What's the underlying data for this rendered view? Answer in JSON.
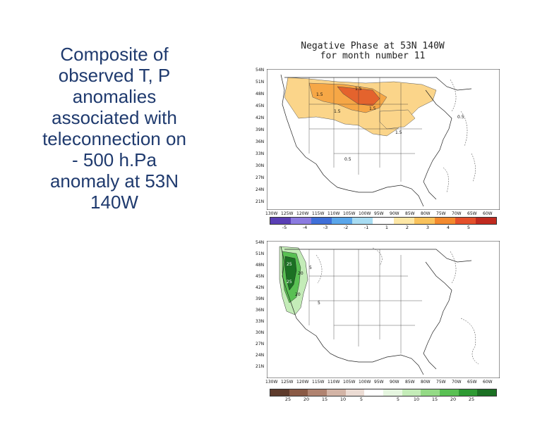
{
  "caption": {
    "lines": [
      "Composite of",
      "observed T, P",
      "anomalies",
      "associated with",
      "teleconnection on",
      "- 500 h.Pa",
      "anomaly at 53N",
      "140W"
    ]
  },
  "figure": {
    "title_line1": "Negative Phase at  53N 140W",
    "title_line2": "for month number 11",
    "lat_labels": [
      "54N",
      "51N",
      "48N",
      "45N",
      "42N",
      "39N",
      "36N",
      "33N",
      "30N",
      "27N",
      "24N",
      "21N"
    ],
    "lon_labels": [
      "130W",
      "125W",
      "120W",
      "115W",
      "110W",
      "105W",
      "100W",
      "95W",
      "90W",
      "85W",
      "80W",
      "75W",
      "70W",
      "65W",
      "60W"
    ],
    "temp_colorbar": {
      "labels": [
        "-5",
        "-4",
        "-3",
        "-2",
        "-1",
        "1",
        "2",
        "3",
        "4",
        "5"
      ],
      "colors": [
        "#5a3fb5",
        "#8b7be0",
        "#3f6fd8",
        "#5aa6ea",
        "#a8dcf2",
        "#ffffff",
        "#fde7a6",
        "#f9c25c",
        "#f38a2e",
        "#e4502b",
        "#c02a1f"
      ]
    },
    "precip_colorbar": {
      "labels": [
        "25",
        "20",
        "15",
        "10",
        "5",
        "5",
        "10",
        "15",
        "20",
        "25"
      ],
      "colors": [
        "#5e3b2c",
        "#8a5a45",
        "#b08370",
        "#d3b4a6",
        "#ecdcd4",
        "#ffffff",
        "#e6f6e0",
        "#c4ecb8",
        "#94da86",
        "#59c053",
        "#2e9a33",
        "#1b7023"
      ]
    },
    "temp_map_labels": [
      "1.5",
      "1.5",
      "1.5",
      "1.5",
      "1.5",
      "0.5",
      "0.5"
    ],
    "precip_map_labels": [
      "25",
      "25",
      "20",
      "5",
      "5",
      "20"
    ]
  }
}
